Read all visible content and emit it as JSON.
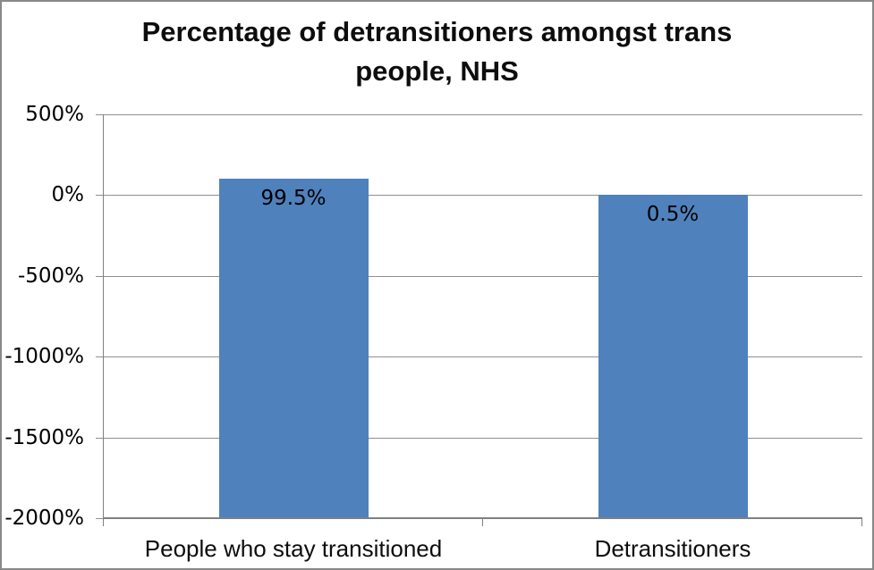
{
  "window": {
    "background_color": "#ffffff",
    "border_color": "#898989"
  },
  "chart_data": {
    "type": "bar",
    "title": "Percentage of detransitioners amongst trans people, NHS",
    "title_lines": [
      "Percentage of detransitioners amongst trans",
      "people, NHS"
    ],
    "categories": [
      "People who stay transitioned",
      "Detransitioners"
    ],
    "values": [
      99.5,
      0.5
    ],
    "bar_labels": [
      "99.5%",
      "0.5%"
    ],
    "xlabel": "",
    "ylabel": "",
    "ylim": [
      -2000,
      500
    ],
    "yticks": [
      {
        "value": 500,
        "label": "500%"
      },
      {
        "value": 0,
        "label": "0%"
      },
      {
        "value": -500,
        "label": "-500%"
      },
      {
        "value": -1000,
        "label": "-1000%"
      },
      {
        "value": -1500,
        "label": "-1500%"
      },
      {
        "value": -2000,
        "label": "-2000%"
      }
    ],
    "grid": true,
    "legend": "none",
    "bars_drawn_from_axis_minimum": true,
    "bar_color": "#4F81BD",
    "gridline_color": "#8f8f8f",
    "axis_color": "#808080",
    "text_color": "#000000"
  }
}
